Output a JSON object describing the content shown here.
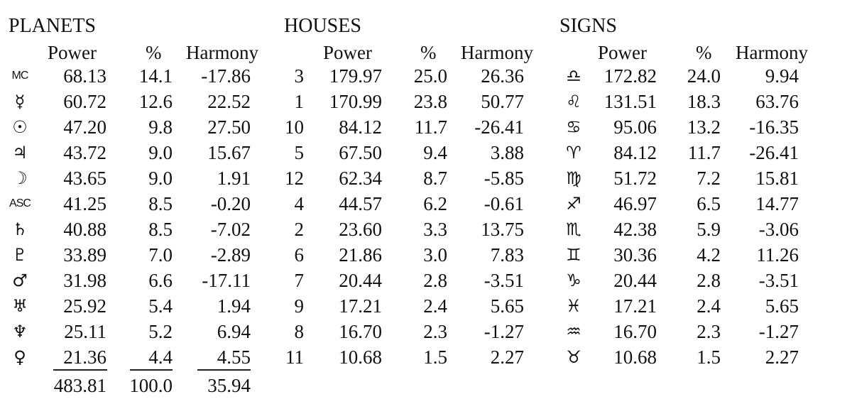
{
  "headings": {
    "planets": "PLANETS",
    "houses": "HOUSES",
    "signs": "SIGNS"
  },
  "columns": {
    "power": "Power",
    "percent": "%",
    "harmony": "Harmony"
  },
  "planets": [
    {
      "symbol": "MC",
      "power": "68.13",
      "percent": "14.1",
      "harmony": "-17.86"
    },
    {
      "symbol": "☿",
      "power": "60.72",
      "percent": "12.6",
      "harmony": "22.52"
    },
    {
      "symbol": "☉",
      "power": "47.20",
      "percent": "9.8",
      "harmony": "27.50"
    },
    {
      "symbol": "♃",
      "power": "43.72",
      "percent": "9.0",
      "harmony": "15.67"
    },
    {
      "symbol": "☽",
      "power": "43.65",
      "percent": "9.0",
      "harmony": "1.91"
    },
    {
      "symbol": "ASC",
      "power": "41.25",
      "percent": "8.5",
      "harmony": "-0.20"
    },
    {
      "symbol": "♄",
      "power": "40.88",
      "percent": "8.5",
      "harmony": "-7.02"
    },
    {
      "symbol": "♇",
      "power": "33.89",
      "percent": "7.0",
      "harmony": "-2.89"
    },
    {
      "symbol": "♂",
      "power": "31.98",
      "percent": "6.6",
      "harmony": "-17.11"
    },
    {
      "symbol": "♅",
      "power": "25.92",
      "percent": "5.4",
      "harmony": "1.94"
    },
    {
      "symbol": "♆",
      "power": "25.11",
      "percent": "5.2",
      "harmony": "6.94"
    },
    {
      "symbol": "♀",
      "power": "21.36",
      "percent": "4.4",
      "harmony": "4.55"
    }
  ],
  "planet_totals": {
    "power": "483.81",
    "percent": "100.0",
    "harmony": "35.94"
  },
  "houses": [
    {
      "house": "3",
      "power": "179.97",
      "percent": "25.0",
      "harmony": "26.36"
    },
    {
      "house": "1",
      "power": "170.99",
      "percent": "23.8",
      "harmony": "50.77"
    },
    {
      "house": "10",
      "power": "84.12",
      "percent": "11.7",
      "harmony": "-26.41"
    },
    {
      "house": "5",
      "power": "67.50",
      "percent": "9.4",
      "harmony": "3.88"
    },
    {
      "house": "12",
      "power": "62.34",
      "percent": "8.7",
      "harmony": "-5.85"
    },
    {
      "house": "4",
      "power": "44.57",
      "percent": "6.2",
      "harmony": "-0.61"
    },
    {
      "house": "2",
      "power": "23.60",
      "percent": "3.3",
      "harmony": "13.75"
    },
    {
      "house": "6",
      "power": "21.86",
      "percent": "3.0",
      "harmony": "7.83"
    },
    {
      "house": "7",
      "power": "20.44",
      "percent": "2.8",
      "harmony": "-3.51"
    },
    {
      "house": "9",
      "power": "17.21",
      "percent": "2.4",
      "harmony": "5.65"
    },
    {
      "house": "8",
      "power": "16.70",
      "percent": "2.3",
      "harmony": "-1.27"
    },
    {
      "house": "11",
      "power": "10.68",
      "percent": "1.5",
      "harmony": "2.27"
    }
  ],
  "signs": [
    {
      "symbol": "♎",
      "power": "172.82",
      "percent": "24.0",
      "harmony": "9.94"
    },
    {
      "symbol": "♌",
      "power": "131.51",
      "percent": "18.3",
      "harmony": "63.76"
    },
    {
      "symbol": "♋",
      "power": "95.06",
      "percent": "13.2",
      "harmony": "-16.35"
    },
    {
      "symbol": "♈",
      "power": "84.12",
      "percent": "11.7",
      "harmony": "-26.41"
    },
    {
      "symbol": "♍",
      "power": "51.72",
      "percent": "7.2",
      "harmony": "15.81"
    },
    {
      "symbol": "♐",
      "power": "46.97",
      "percent": "6.5",
      "harmony": "14.77"
    },
    {
      "symbol": "♏",
      "power": "42.38",
      "percent": "5.9",
      "harmony": "-3.06"
    },
    {
      "symbol": "♊",
      "power": "30.36",
      "percent": "4.2",
      "harmony": "11.26"
    },
    {
      "symbol": "♑",
      "power": "20.44",
      "percent": "2.8",
      "harmony": "-3.51"
    },
    {
      "symbol": "♓",
      "power": "17.21",
      "percent": "2.4",
      "harmony": "5.65"
    },
    {
      "symbol": "♒",
      "power": "16.70",
      "percent": "2.3",
      "harmony": "-1.27"
    },
    {
      "symbol": "♉",
      "power": "10.68",
      "percent": "1.5",
      "harmony": "2.27"
    }
  ]
}
